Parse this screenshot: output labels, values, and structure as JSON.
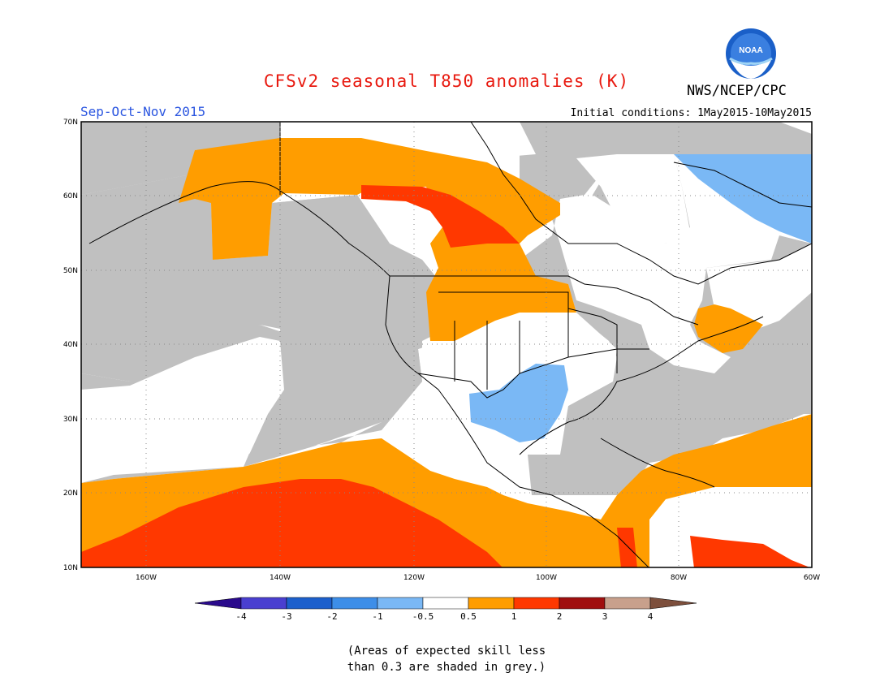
{
  "title": "CFSv2 seasonal T850 anomalies (K)",
  "credit": "NWS/NCEP/CPC",
  "logo_text": "NOAA",
  "season": "Sep-Oct-Nov 2015",
  "initial_conditions": "Initial conditions: 1May2015-10May2015",
  "note_line1": "(Areas of expected skill less",
  "note_line2": "than 0.3 are shaded in grey.)",
  "lat_labels": [
    "70N",
    "60N",
    "50N",
    "40N",
    "30N",
    "20N",
    "10N"
  ],
  "lon_labels": [
    "160W",
    "140W",
    "120W",
    "100W",
    "80W",
    "60W"
  ],
  "colorbar": {
    "labels": [
      "-4",
      "-3",
      "-2",
      "-1",
      "-0.5",
      "0.5",
      "1",
      "2",
      "3",
      "4"
    ],
    "colors": [
      "#2a0a8c",
      "#4a3fd0",
      "#1c5fcc",
      "#3d8ee8",
      "#7ab8f5",
      "#ffffff",
      "#ff9d00",
      "#ff3800",
      "#a00f0f",
      "#c8a08c",
      "#7d4f3c"
    ]
  },
  "colors": {
    "grey_low_skill": "#c0c0c0",
    "anom_pos_0_5_1": "#ff9d00",
    "anom_pos_1_2": "#ff3800",
    "anom_neg_0_5_1": "#7ab8f5",
    "title": "#e8190f",
    "season": "#2a55e0"
  }
}
